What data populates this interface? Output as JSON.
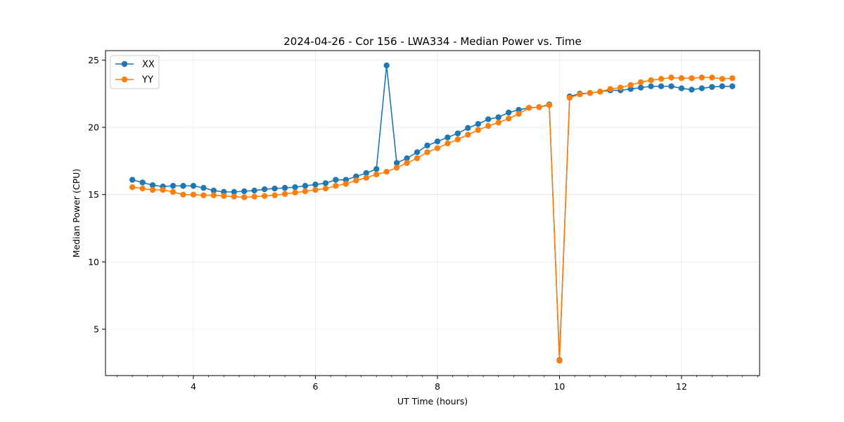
{
  "chart_data": {
    "type": "line",
    "title": "2024-04-26 - Cor 156 - LWA334 - Median Power vs. Time",
    "xlabel": "UT Time (hours)",
    "ylabel": "Median Power (CPU)",
    "xlim": [
      2.56,
      13.28
    ],
    "ylim": [
      1.55,
      25.7
    ],
    "xticks": [
      4,
      6,
      8,
      10,
      12
    ],
    "yticks": [
      5,
      10,
      15,
      20,
      25
    ],
    "x_minor_step": 0.25,
    "grid": true,
    "legend_position": "upper-left",
    "x": [
      3.0,
      3.167,
      3.333,
      3.5,
      3.667,
      3.833,
      4.0,
      4.167,
      4.333,
      4.5,
      4.667,
      4.833,
      5.0,
      5.167,
      5.333,
      5.5,
      5.667,
      5.833,
      6.0,
      6.167,
      6.333,
      6.5,
      6.667,
      6.833,
      7.0,
      7.167,
      7.333,
      7.5,
      7.667,
      7.833,
      8.0,
      8.167,
      8.333,
      8.5,
      8.667,
      8.833,
      9.0,
      9.167,
      9.333,
      9.5,
      9.667,
      9.833,
      10.0,
      10.167,
      10.333,
      10.5,
      10.667,
      10.833,
      11.0,
      11.167,
      11.333,
      11.5,
      11.667,
      11.833,
      12.0,
      12.167,
      12.333,
      12.5,
      12.667,
      12.833
    ],
    "series": [
      {
        "name": "XX",
        "color": "#1f77b4",
        "values": [
          16.1,
          15.9,
          15.7,
          15.6,
          15.65,
          15.65,
          15.65,
          15.5,
          15.3,
          15.2,
          15.2,
          15.25,
          15.3,
          15.4,
          15.45,
          15.5,
          15.55,
          15.65,
          15.75,
          15.85,
          16.1,
          16.1,
          16.35,
          16.6,
          16.9,
          24.6,
          17.35,
          17.7,
          18.15,
          18.65,
          18.95,
          19.25,
          19.55,
          19.95,
          20.25,
          20.6,
          20.75,
          21.1,
          21.3,
          21.45,
          21.5,
          21.7,
          2.7,
          22.3,
          22.5,
          22.55,
          22.65,
          22.75,
          22.75,
          22.85,
          22.95,
          23.05,
          23.05,
          23.05,
          22.9,
          22.8,
          22.9,
          23.0,
          23.05,
          23.05
        ]
      },
      {
        "name": "YY",
        "color": "#ff7f0e",
        "values": [
          15.55,
          15.45,
          15.35,
          15.35,
          15.2,
          15.0,
          15.0,
          14.95,
          14.95,
          14.9,
          14.85,
          14.8,
          14.85,
          14.9,
          14.95,
          15.05,
          15.15,
          15.25,
          15.35,
          15.45,
          15.65,
          15.8,
          16.05,
          16.25,
          16.5,
          16.7,
          17.0,
          17.35,
          17.7,
          18.15,
          18.45,
          18.8,
          19.1,
          19.45,
          19.8,
          20.1,
          20.35,
          20.65,
          21.0,
          21.45,
          21.5,
          21.65,
          2.65,
          22.2,
          22.45,
          22.55,
          22.65,
          22.85,
          22.95,
          23.15,
          23.35,
          23.5,
          23.6,
          23.7,
          23.65,
          23.65,
          23.7,
          23.7,
          23.6,
          23.65
        ]
      }
    ]
  }
}
